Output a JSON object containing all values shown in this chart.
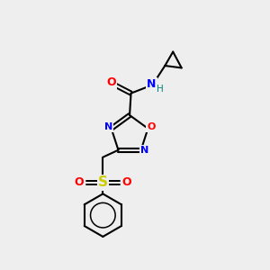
{
  "background_color": "#eeeeee",
  "bond_color": "#000000",
  "atom_colors": {
    "N": "#0000ff",
    "O": "#ff0000",
    "S": "#cccc00",
    "H": "#008080",
    "C": "#000000"
  },
  "figsize": [
    3.0,
    3.0
  ],
  "dpi": 100
}
